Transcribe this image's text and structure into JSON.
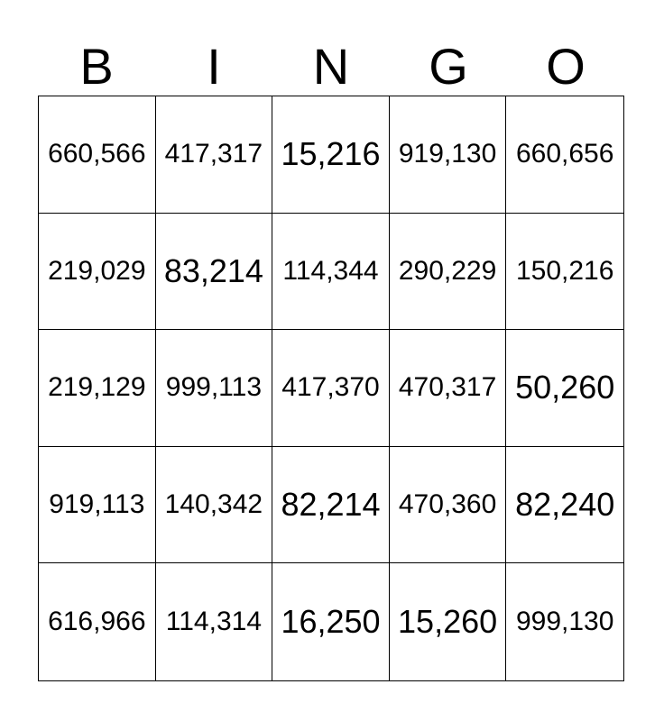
{
  "title": "BINGO",
  "header": {
    "letters": [
      "B",
      "I",
      "N",
      "G",
      "O"
    ]
  },
  "grid": {
    "rows": [
      [
        "660,566",
        "417,317",
        "15,216",
        "919,130",
        "660,656"
      ],
      [
        "219,029",
        "83,214",
        "114,344",
        "290,229",
        "150,216"
      ],
      [
        "219,129",
        "999,113",
        "417,370",
        "470,317",
        "50,260"
      ],
      [
        "919,113",
        "140,342",
        "82,214",
        "470,360",
        "82,240"
      ],
      [
        "616,966",
        "114,314",
        "16,250",
        "15,260",
        "999,130"
      ]
    ]
  },
  "colors": {
    "text": "#000000",
    "background": "#ffffff",
    "grid_line": "#000000"
  }
}
